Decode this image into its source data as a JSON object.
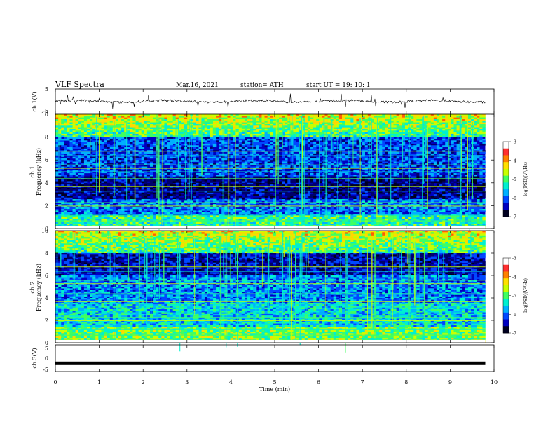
{
  "header": {
    "title": "VLF  Spectra",
    "date": "Mar.16, 2021",
    "station": "station= ATH",
    "start": "start  UT  =    19: 10: 1"
  },
  "chart_data": [
    {
      "id": "ch1-waveform",
      "type": "line",
      "ylabel": "ch.1(V)",
      "ylim": [
        -5,
        5
      ],
      "yticks": [
        "5",
        "-5"
      ],
      "xlim": [
        0,
        10
      ],
      "approx_level": 0,
      "color": "#000000"
    },
    {
      "id": "ch1-spectrogram",
      "type": "heatmap",
      "ylabel": "ch.1\nFrequency  (kHz)",
      "ylabel_lines": [
        "ch.1",
        "Frequency  (kHz)"
      ],
      "ylim": [
        0,
        10
      ],
      "yticks": [
        "0",
        "2",
        "4",
        "6",
        "8",
        "10"
      ],
      "xlim": [
        0,
        10.0
      ],
      "data_extent_min": 9.8,
      "colorbar": {
        "label": "log(PSD)(V²/Hz)",
        "ticks": [
          "-3",
          "-4",
          "-5",
          "-6",
          "-7"
        ],
        "range": [
          -7,
          -3
        ]
      }
    },
    {
      "id": "ch2-spectrogram",
      "type": "heatmap",
      "ylabel": "ch.2\nFrequency  (kHz)",
      "ylabel_lines": [
        "ch.2",
        "Frequency  (kHz)"
      ],
      "ylim": [
        0,
        10
      ],
      "yticks": [
        "0",
        "2",
        "4",
        "6",
        "8",
        "10"
      ],
      "xlim": [
        0,
        10.0
      ],
      "data_extent_min": 9.8,
      "colorbar": {
        "label": "log(PSD)(V²/Hz)",
        "ticks": [
          "-3",
          "-4",
          "-5",
          "-6",
          "-7"
        ],
        "range": [
          -7,
          -3
        ]
      }
    },
    {
      "id": "ch3-waveform",
      "type": "line",
      "ylabel": "ch.3(V)",
      "ylim": [
        -5,
        5
      ],
      "yticks": [
        "5",
        "0",
        "-5"
      ],
      "xlim": [
        0,
        10
      ],
      "approx_level": -1.8,
      "color": "#000000"
    }
  ],
  "xaxis": {
    "label": "Time  (min)",
    "ticks": [
      "0",
      "1",
      "2",
      "3",
      "4",
      "5",
      "6",
      "7",
      "8",
      "9",
      "10"
    ],
    "range": [
      0,
      10
    ]
  },
  "colormap": [
    "#000020",
    "#00006b",
    "#0000c0",
    "#0048ff",
    "#00b0ff",
    "#00f0d0",
    "#40ff60",
    "#c8ff00",
    "#ffd800",
    "#ff6000",
    "#e00000",
    "#ffffff"
  ]
}
